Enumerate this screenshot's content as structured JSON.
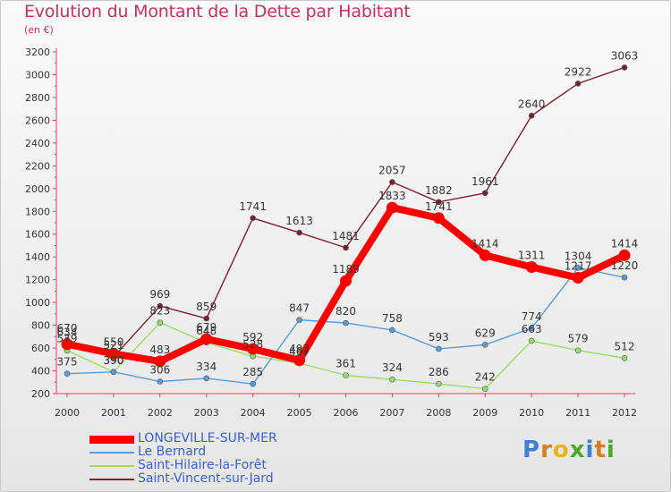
{
  "title": "Evolution du Montant de la Dette par Habitant",
  "unit_label": "(en €)",
  "logo": {
    "letters": [
      {
        "ch": "P",
        "color": "#3d7fd1"
      },
      {
        "ch": "r",
        "color": "#e07a1f"
      },
      {
        "ch": "o",
        "color": "#e9b419"
      },
      {
        "ch": "x",
        "color": "#4aa82b"
      },
      {
        "ch": "i",
        "color": "#3d7fd1"
      },
      {
        "ch": "t",
        "color": "#e07a1f"
      },
      {
        "ch": "i",
        "color": "#4aa82b"
      }
    ]
  },
  "chart_data": {
    "type": "line",
    "title": "Evolution du Montant de la Dette par Habitant",
    "ylabel": "(en €)",
    "ylim": [
      200,
      3200
    ],
    "yticks": [
      200,
      400,
      600,
      800,
      1000,
      1200,
      1400,
      1600,
      1800,
      2000,
      2200,
      2400,
      2600,
      2800,
      3000,
      3200
    ],
    "x": [
      "2000",
      "2001",
      "2002",
      "2003",
      "2004",
      "2005",
      "2006",
      "2007",
      "2008",
      "2009",
      "2010",
      "2011",
      "2012"
    ],
    "grid": false,
    "legend_position": "bottom-left",
    "series": [
      {
        "name": "LONGEVILLE-SUR-MER",
        "color": "#ff0000",
        "values": [
          634,
          550,
          483,
          679,
          592,
          492,
          1189,
          1833,
          1741,
          1414,
          1311,
          1217,
          1414
        ]
      },
      {
        "name": "Le Bernard",
        "color": "#5b9bd5",
        "values": [
          375,
          390,
          306,
          334,
          285,
          847,
          820,
          758,
          593,
          629,
          774,
          1304,
          1220
        ]
      },
      {
        "name": "Saint-Hilaire-la-Forêt",
        "color": "#99dd66",
        "values": [
          579,
          390,
          823,
          648,
          528,
          467,
          361,
          324,
          286,
          242,
          663,
          579,
          512
        ]
      },
      {
        "name": "Saint-Vincent-sur-Jard",
        "color": "#7a1f2e",
        "values": [
          670,
          521,
          969,
          859,
          1741,
          1613,
          1481,
          2057,
          1882,
          1961,
          2640,
          2922,
          3063
        ]
      }
    ]
  }
}
